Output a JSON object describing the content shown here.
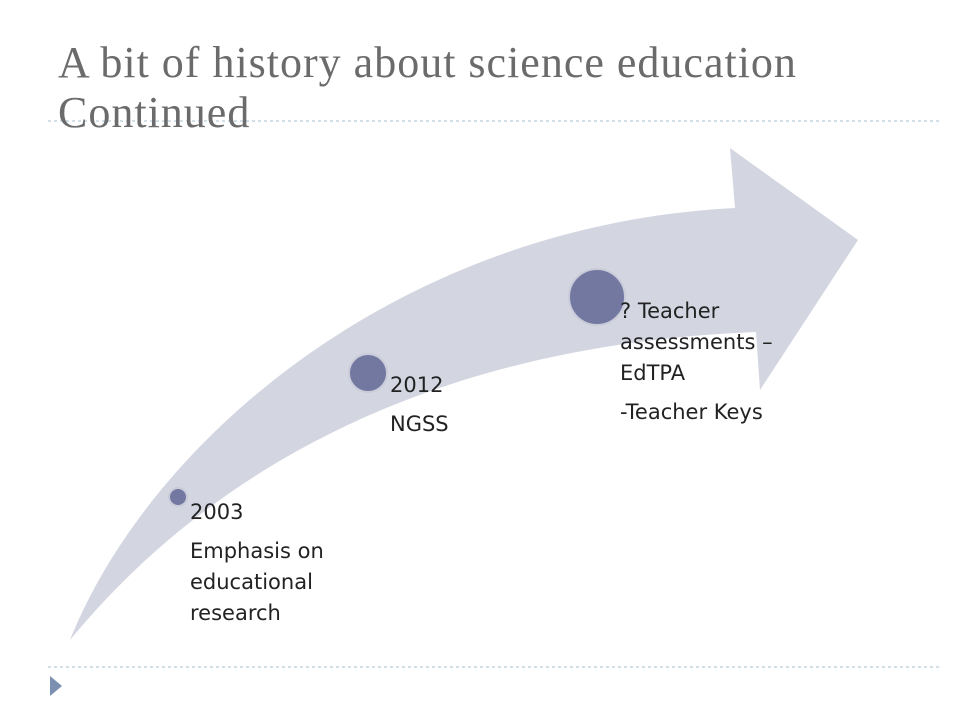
{
  "title": "A bit of history about science education Continued",
  "milestones": [
    {
      "paragraphs": [
        "2003",
        "Emphasis on educational research"
      ]
    },
    {
      "paragraphs": [
        "2012",
        "NGSS"
      ]
    },
    {
      "paragraphs": [
        "? Teacher assessments – EdTPA",
        "-Teacher Keys"
      ]
    }
  ]
}
